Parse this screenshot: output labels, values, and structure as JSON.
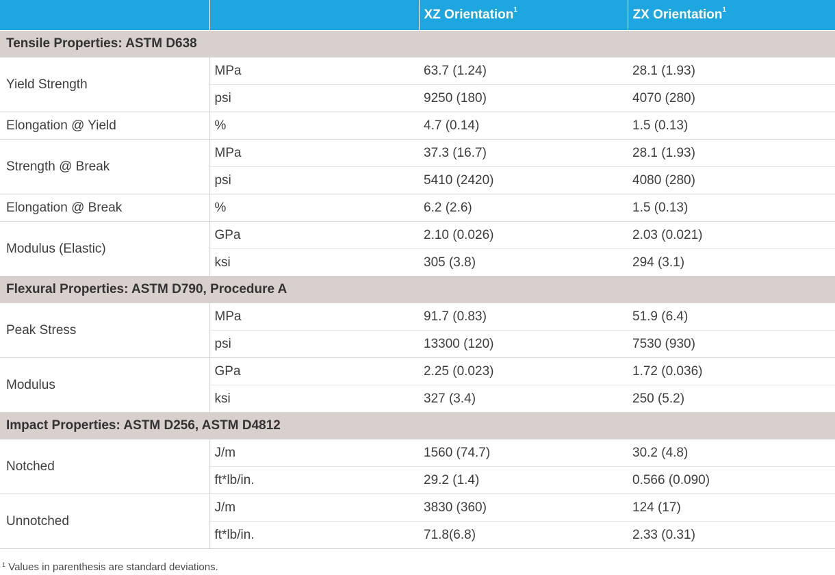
{
  "header": {
    "col_xz": "XZ Orientation",
    "col_zx": "ZX Orientation",
    "footnote_mark": "1"
  },
  "sections": [
    {
      "title": "Tensile Properties: ASTM D638",
      "rows": [
        {
          "property": "Yield Strength",
          "units": [
            {
              "unit": "MPa",
              "xz": "63.7 (1.24)",
              "zx": "28.1 (1.93)"
            },
            {
              "unit": "psi",
              "xz": "9250 (180)",
              "zx": "4070 (280)"
            }
          ]
        },
        {
          "property": "Elongation @ Yield",
          "units": [
            {
              "unit": "%",
              "xz": "4.7 (0.14)",
              "zx": "1.5 (0.13)"
            }
          ]
        },
        {
          "property": "Strength @ Break",
          "units": [
            {
              "unit": "MPa",
              "xz": "37.3 (16.7)",
              "zx": "28.1 (1.93)"
            },
            {
              "unit": "psi",
              "xz": "5410 (2420)",
              "zx": "4080 (280)"
            }
          ]
        },
        {
          "property": "Elongation @ Break",
          "units": [
            {
              "unit": "%",
              "xz": "6.2 (2.6)",
              "zx": "1.5 (0.13)"
            }
          ]
        },
        {
          "property": "Modulus (Elastic)",
          "units": [
            {
              "unit": "GPa",
              "xz": "2.10 (0.026)",
              "zx": "2.03 (0.021)"
            },
            {
              "unit": "ksi",
              "xz": "305 (3.8)",
              "zx": "294 (3.1)"
            }
          ]
        }
      ]
    },
    {
      "title": "Flexural Properties: ASTM D790, Procedure A",
      "rows": [
        {
          "property": "Peak Stress",
          "units": [
            {
              "unit": "MPa",
              "xz": "91.7 (0.83)",
              "zx": "51.9 (6.4)"
            },
            {
              "unit": "psi",
              "xz": "13300 (120)",
              "zx": "7530 (930)"
            }
          ]
        },
        {
          "property": "Modulus",
          "units": [
            {
              "unit": "GPa",
              "xz": "2.25 (0.023)",
              "zx": "1.72 (0.036)"
            },
            {
              "unit": "ksi",
              "xz": "327 (3.4)",
              "zx": "250 (5.2)"
            }
          ]
        }
      ]
    },
    {
      "title": "Impact Properties: ASTM D256, ASTM D4812",
      "rows": [
        {
          "property": "Notched",
          "units": [
            {
              "unit": "J/m",
              "xz": "1560 (74.7)",
              "zx": "30.2 (4.8)"
            },
            {
              "unit": "ft*lb/in.",
              "xz": "29.2 (1.4)",
              "zx": "0.566 (0.090)"
            }
          ]
        },
        {
          "property": "Unnotched",
          "units": [
            {
              "unit": "J/m",
              "xz": "3830 (360)",
              "zx": "124 (17)"
            },
            {
              "unit": "ft*lb/in.",
              "xz": "71.8(6.8)",
              "zx": "2.33 (0.31)"
            }
          ]
        }
      ]
    }
  ],
  "footnote": {
    "mark": "1",
    "text": "Values in parenthesis are standard deviations."
  },
  "colors": {
    "header_bg": "#1ea6e0",
    "section_bg": "#d8d0cc"
  }
}
